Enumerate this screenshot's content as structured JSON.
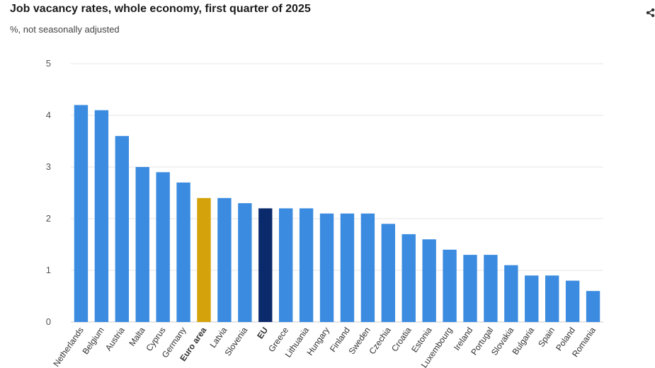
{
  "header": {
    "title": "Job vacancy rates, whole economy, first quarter of 2025",
    "subtitle": "%, not seasonally adjusted"
  },
  "toolbar": {
    "share_icon": "share-icon"
  },
  "colors": {
    "default": "#3b8be0",
    "euro_area": "#d4a20a",
    "eu": "#0b2a6b",
    "grid": "#e6e6e6",
    "axis": "#cccccc"
  },
  "chart_data": {
    "type": "bar",
    "title": "Job vacancy rates, whole economy, first quarter of 2025",
    "subtitle": "%, not seasonally adjusted",
    "xlabel": "",
    "ylabel": "",
    "ylim": [
      0,
      5
    ],
    "yticks": [
      0,
      1,
      2,
      3,
      4,
      5
    ],
    "grid": true,
    "categories": [
      "Netherlands",
      "Belgium",
      "Austria",
      "Malta",
      "Cyprus",
      "Germany",
      "Euro area",
      "Latvia",
      "Slovenia",
      "EU",
      "Greece",
      "Lithuania",
      "Hungary",
      "Finland",
      "Sweden",
      "Czechia",
      "Croatia",
      "Estonia",
      "Luxembourg",
      "Ireland",
      "Portugal",
      "Slovakia",
      "Bulgaria",
      "Spain",
      "Poland",
      "Romania"
    ],
    "values": [
      4.2,
      4.1,
      3.6,
      3.0,
      2.9,
      2.7,
      2.4,
      2.4,
      2.3,
      2.2,
      2.2,
      2.2,
      2.1,
      2.1,
      2.1,
      1.9,
      1.7,
      1.6,
      1.4,
      1.3,
      1.3,
      1.1,
      0.9,
      0.9,
      0.8,
      0.6
    ],
    "highlight": {
      "Euro area": "#d4a20a",
      "EU": "#0b2a6b"
    },
    "bold_categories": [
      "Euro area",
      "EU"
    ]
  }
}
